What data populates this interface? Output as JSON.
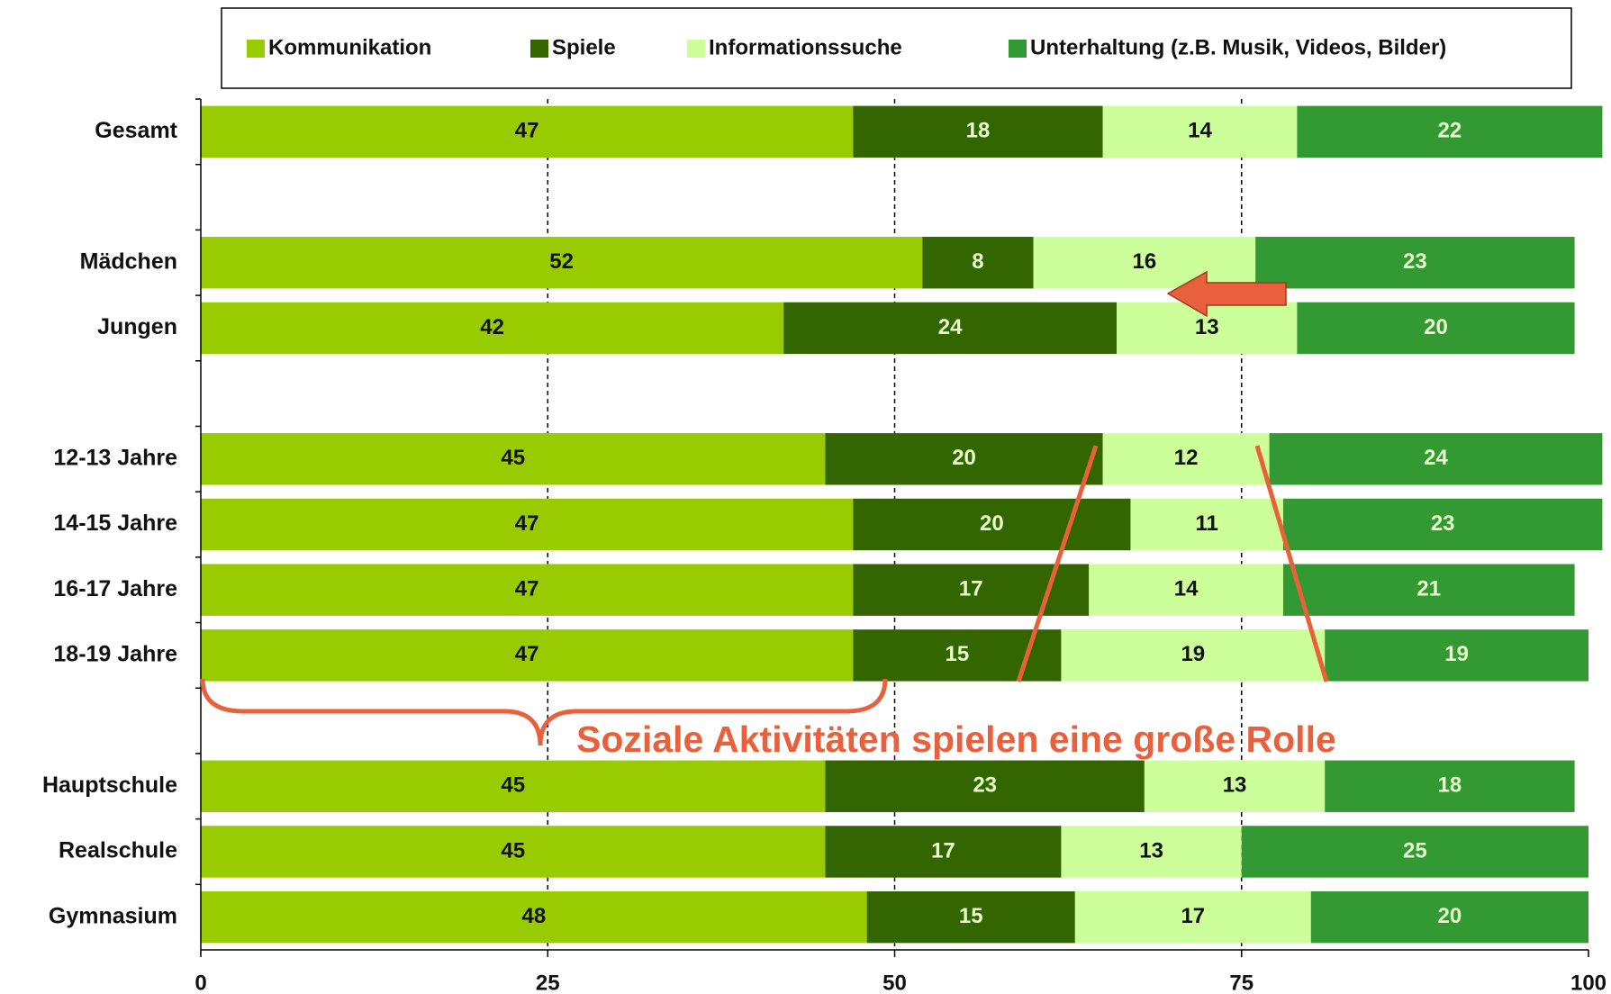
{
  "chart_data": {
    "type": "stacked_bar_horizontal",
    "categories": [
      "Gesamt",
      null,
      "Mädchen",
      "Jungen",
      null,
      "12-13 Jahre",
      "14-15 Jahre",
      "16-17 Jahre",
      "18-19 Jahre",
      null,
      "Hauptschule",
      "Realschule",
      "Gymnasium"
    ],
    "series": [
      {
        "name": "Kommunikation",
        "color": "#99cc00",
        "values": [
          47,
          null,
          52,
          42,
          null,
          45,
          47,
          47,
          47,
          null,
          45,
          45,
          48
        ]
      },
      {
        "name": "Spiele",
        "color": "#336600",
        "values": [
          18,
          null,
          8,
          24,
          null,
          20,
          20,
          17,
          15,
          null,
          23,
          17,
          15
        ]
      },
      {
        "name": "Informationssuche",
        "color": "#ccff99",
        "values": [
          14,
          null,
          16,
          13,
          null,
          12,
          11,
          14,
          19,
          null,
          13,
          13,
          17
        ]
      },
      {
        "name": "Unterhaltung (z.B. Musik, Videos, Bilder)",
        "color": "#339933",
        "values": [
          22,
          null,
          23,
          20,
          null,
          24,
          23,
          21,
          19,
          null,
          18,
          25,
          20
        ]
      }
    ],
    "xlim": [
      0,
      100
    ],
    "xticks": [
      0,
      25,
      50,
      75,
      100
    ],
    "grid": true,
    "legend": "top",
    "annotation": "Soziale Aktivitäten spielen eine große Rolle"
  }
}
